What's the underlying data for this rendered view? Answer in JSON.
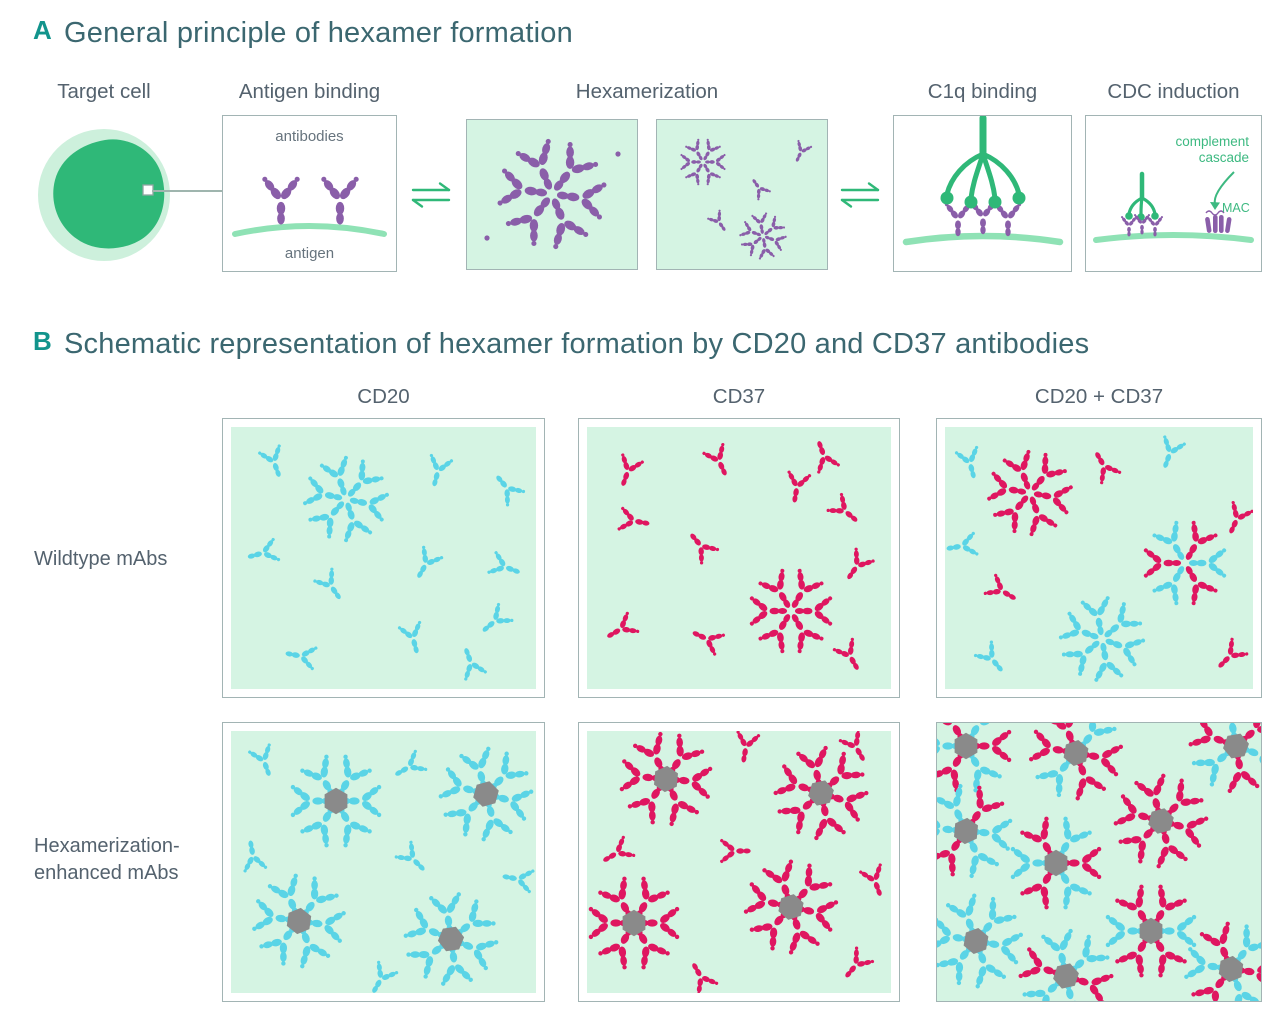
{
  "colors": {
    "teal_label": "#12948c",
    "title_text": "#3b6770",
    "label_text": "#54626e",
    "small_text": "#66737d",
    "panel_bg": "#d5f4e3",
    "border": "#a2b4b4",
    "green": "#2fb878",
    "green_text": "#3db981",
    "membrane": "#8fe2b5",
    "cell_halo": "#cdf0dc",
    "connector": "#9fb5ae",
    "purple": "#8a5ea9",
    "cyan": "#5ad4e6",
    "red": "#df1660",
    "gray": "#8a8a8a"
  },
  "panelA": {
    "label": "A",
    "title": "General principle of hexamer formation",
    "stage_labels": [
      "Target cell",
      "Antigen binding",
      "Hexamerization",
      "C1q binding",
      "CDC induction"
    ],
    "antigen_binding": {
      "antibodies_label": "antibodies",
      "antigen_label": "antigen"
    },
    "cdc": {
      "cascade_line1": "complement",
      "cascade_line2": "cascade",
      "mac_label": "MAC"
    }
  },
  "panelB": {
    "label": "B",
    "title": "Schematic representation of hexamer formation by CD20 and CD37 antibodies",
    "column_labels": [
      "CD20",
      "CD37",
      "CD20 + CD37"
    ],
    "row_labels": [
      "Wildtype mAbs",
      "Hexamerization-enhanced mAbs"
    ]
  }
}
